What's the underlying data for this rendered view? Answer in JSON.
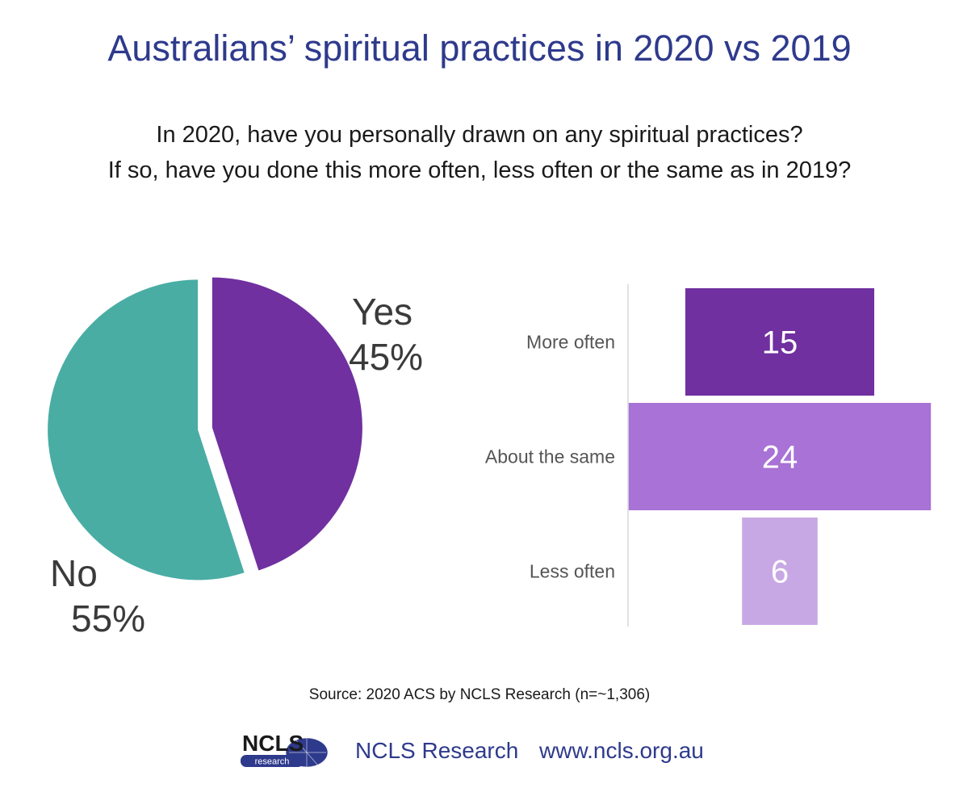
{
  "title": "Australians’ spiritual practices in 2020 vs 2019",
  "subtitle": {
    "line1": "In 2020, have you personally drawn on any spiritual practices?",
    "line2": "If so, have you done this more often, less often or the same as in 2019?"
  },
  "chart_data": [
    {
      "type": "pie",
      "slices": [
        {
          "label": "Yes",
          "value": 45,
          "value_label": "45%",
          "color": "#7030a0"
        },
        {
          "label": "No",
          "value": 55,
          "value_label": "55%",
          "color": "#4aada4"
        }
      ]
    },
    {
      "type": "bar",
      "orientation": "horizontal",
      "categories": [
        "More often",
        "About the same",
        "Less often"
      ],
      "values": [
        15,
        24,
        6
      ],
      "colors": [
        "#7030a0",
        "#a872d6",
        "#c8a8e4"
      ],
      "value_label_color": "#ffffff"
    }
  ],
  "source": "Source: 2020 ACS by NCLS Research (n=~1,306)",
  "footer": {
    "logo_text": "NCLS",
    "logo_subtext": "research",
    "org": "NCLS Research",
    "url": "www.ncls.org.au"
  },
  "colors": {
    "title": "#2e3a8c",
    "text": "#1a1a1a",
    "label": "#555555"
  }
}
